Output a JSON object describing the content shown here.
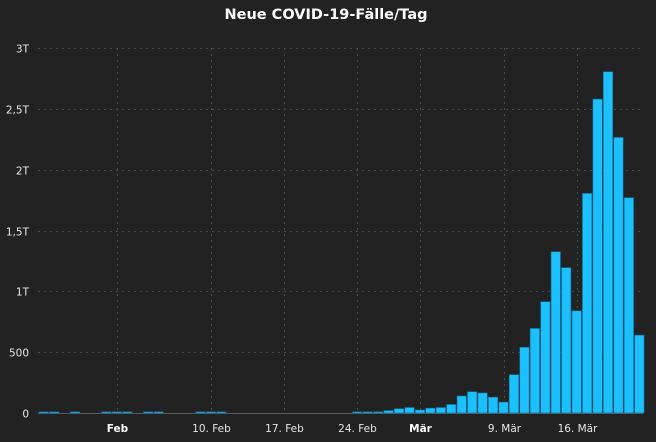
{
  "chart_data": {
    "type": "bar",
    "title": "Neue COVID-19-Fälle/Tag",
    "xlabel": "",
    "ylabel": "",
    "ylim": [
      0,
      3000
    ],
    "y_ticks": [
      {
        "value": 0,
        "label": "0"
      },
      {
        "value": 500,
        "label": "500"
      },
      {
        "value": 1000,
        "label": "1T"
      },
      {
        "value": 1500,
        "label": "1,5T"
      },
      {
        "value": 2000,
        "label": "2T"
      },
      {
        "value": 2500,
        "label": "2,5T"
      },
      {
        "value": 3000,
        "label": "3T"
      }
    ],
    "x_ticks": [
      {
        "index": 7,
        "label": "Feb",
        "major": true
      },
      {
        "index": 16,
        "label": "10. Feb",
        "major": false
      },
      {
        "index": 23,
        "label": "17. Feb",
        "major": false
      },
      {
        "index": 30,
        "label": "24. Feb",
        "major": false
      },
      {
        "index": 36,
        "label": "Mär",
        "major": true
      },
      {
        "index": 44,
        "label": "9. Mär",
        "major": false
      },
      {
        "index": 51,
        "label": "16. Mär",
        "major": false
      }
    ],
    "grid": true,
    "bar_color": "#1cbfff",
    "background": "#222222",
    "values": [
      1,
      1,
      0,
      1,
      0,
      0,
      1,
      2,
      1,
      0,
      1,
      1,
      0,
      0,
      0,
      1,
      2,
      1,
      0,
      0,
      0,
      0,
      0,
      0,
      0,
      0,
      0,
      0,
      0,
      0,
      2,
      5,
      10,
      20,
      35,
      45,
      25,
      40,
      45,
      70,
      140,
      175,
      165,
      130,
      90,
      315,
      540,
      695,
      915,
      1325,
      1195,
      840,
      1805,
      2580,
      2805,
      2265,
      1770,
      640
    ]
  }
}
